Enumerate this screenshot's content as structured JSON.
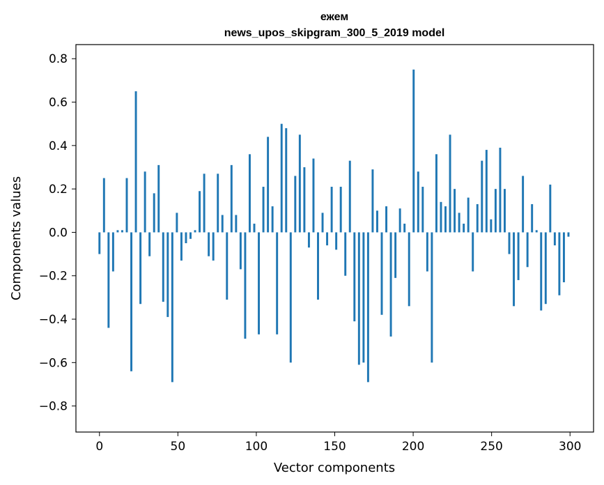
{
  "chart_data": {
    "type": "bar",
    "title_lines": [
      "ежем",
      "news_upos_skipgram_300_5_2019 model"
    ],
    "xlabel": "Vector components",
    "ylabel": "Components values",
    "xlim": [
      -15,
      315
    ],
    "ylim": [
      -0.92,
      0.865
    ],
    "x_ticks": [
      0,
      50,
      100,
      150,
      200,
      250,
      300
    ],
    "x_tick_labels": [
      "0",
      "50",
      "100",
      "150",
      "200",
      "250",
      "300"
    ],
    "y_ticks": [
      -0.8,
      -0.6,
      -0.4,
      -0.2,
      0.0,
      0.2,
      0.4,
      0.6,
      0.8
    ],
    "y_tick_labels": [
      "−0.8",
      "−0.6",
      "−0.4",
      "−0.2",
      "0.0",
      "0.2",
      "0.4",
      "0.6",
      "0.8"
    ],
    "grid": false,
    "bar_color": "#1f77b4",
    "series": [
      {
        "values": [
          -0.1,
          0.25,
          -0.44,
          -0.18,
          0.01,
          0.01,
          0.25,
          -0.64,
          0.65,
          -0.33,
          0.28,
          -0.11,
          0.18,
          0.31,
          -0.32,
          -0.39,
          -0.69,
          0.09,
          -0.13,
          -0.05,
          -0.03,
          0.01,
          0.19,
          0.27,
          -0.11,
          -0.13,
          0.27,
          0.08,
          -0.31,
          0.31,
          0.08,
          -0.17,
          -0.49,
          0.36,
          0.04,
          -0.47,
          0.21,
          0.44,
          0.12,
          -0.47,
          0.5,
          0.48,
          -0.6,
          0.26,
          0.45,
          0.3,
          -0.07,
          0.34,
          -0.31,
          0.09,
          -0.06,
          0.21,
          -0.08,
          0.21,
          -0.2,
          0.33,
          -0.41,
          -0.61,
          -0.6,
          -0.69,
          0.29,
          0.1,
          -0.38,
          0.12,
          -0.48,
          -0.21,
          0.11,
          0.04,
          -0.34,
          0.75,
          0.28,
          0.21,
          -0.18,
          -0.6,
          0.36,
          0.14,
          0.12,
          0.45,
          0.2,
          0.09,
          0.04,
          0.16,
          -0.18,
          0.13,
          0.33,
          0.38,
          0.06,
          0.2,
          0.39,
          0.2,
          -0.1,
          -0.34,
          -0.22,
          0.26,
          -0.16,
          0.13,
          0.01,
          -0.36,
          -0.33,
          0.22,
          -0.06,
          -0.29,
          -0.23,
          -0.02
        ]
      }
    ]
  }
}
